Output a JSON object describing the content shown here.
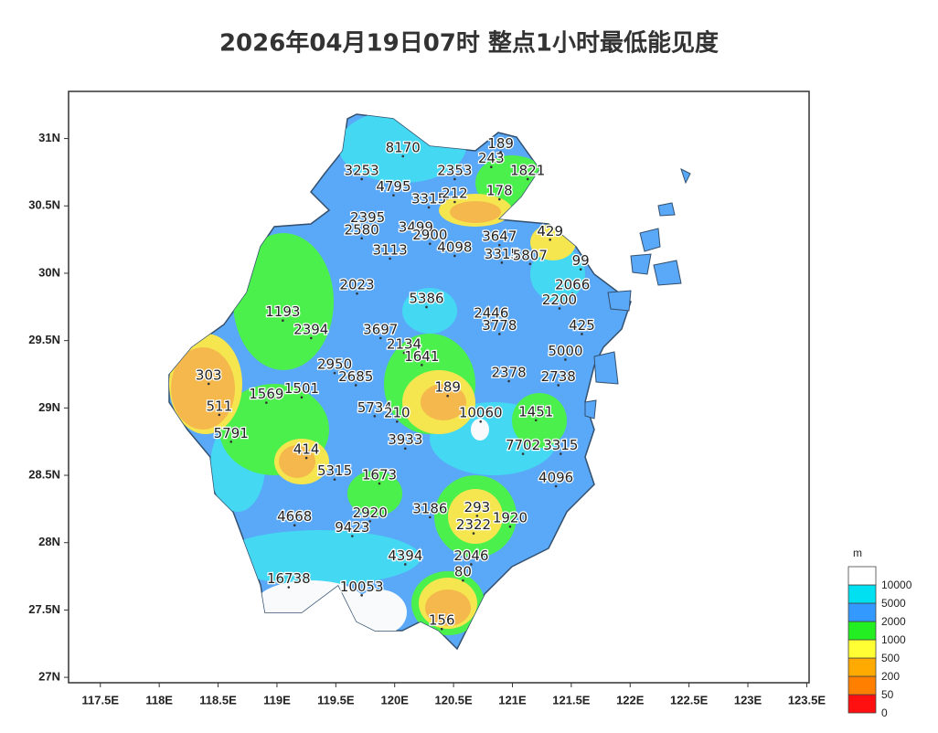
{
  "chart_data": {
    "type": "map",
    "title": "2026年04月19日07时 整点1小时最低能见度",
    "xlim": [
      117.23,
      123.52
    ],
    "ylim": [
      26.96,
      31.35
    ],
    "xticks": [
      {
        "value": 117.5,
        "label": "117.5E"
      },
      {
        "value": 118,
        "label": "118E"
      },
      {
        "value": 118.5,
        "label": "118.5E"
      },
      {
        "value": 119,
        "label": "119E"
      },
      {
        "value": 119.5,
        "label": "119.5E"
      },
      {
        "value": 120,
        "label": "120E"
      },
      {
        "value": 120.5,
        "label": "120.5E"
      },
      {
        "value": 121,
        "label": "121E"
      },
      {
        "value": 121.5,
        "label": "121.5E"
      },
      {
        "value": 122,
        "label": "122E"
      },
      {
        "value": 122.5,
        "label": "122.5E"
      },
      {
        "value": 123,
        "label": "123E"
      },
      {
        "value": 123.5,
        "label": "123.5E"
      }
    ],
    "yticks": [
      {
        "value": 27,
        "label": "27N"
      },
      {
        "value": 27.5,
        "label": "27.5N"
      },
      {
        "value": 28,
        "label": "28N"
      },
      {
        "value": 28.5,
        "label": "28.5N"
      },
      {
        "value": 29,
        "label": "29N"
      },
      {
        "value": 29.5,
        "label": "29.5N"
      },
      {
        "value": 30,
        "label": "30N"
      },
      {
        "value": 30.5,
        "label": "30.5N"
      },
      {
        "value": 31,
        "label": "31N"
      }
    ],
    "stations": {
      "lon": [
        120.07,
        119.72,
        120.51,
        121.13,
        120.82,
        120.9,
        119.99,
        120.29,
        120.51,
        120.89,
        119.77,
        119.72,
        120.18,
        120.3,
        119.96,
        120.51,
        120.89,
        120.91,
        121.15,
        121.32,
        121.58,
        119.68,
        120.27,
        121.51,
        121.4,
        119.05,
        119.29,
        119.88,
        120.82,
        120.89,
        121.59,
        120.08,
        121.45,
        120.23,
        118.42,
        119.49,
        119.67,
        120.97,
        121.39,
        118.91,
        119.21,
        120.45,
        118.51,
        119.83,
        121.2,
        120.02,
        120.73,
        118.61,
        120.09,
        121.09,
        121.41,
        119.25,
        119.49,
        119.87,
        121.37,
        120.3,
        120.7,
        119.79,
        119.15,
        119.64,
        120.67,
        120.98,
        120.09,
        120.65,
        120.58,
        119.1,
        119.72,
        120.4
      ],
      "lat": [
        30.93,
        30.76,
        30.76,
        30.76,
        30.85,
        30.96,
        30.64,
        30.55,
        30.59,
        30.61,
        30.41,
        30.32,
        30.34,
        30.28,
        30.17,
        30.19,
        30.27,
        30.14,
        30.13,
        30.31,
        30.09,
        29.91,
        29.81,
        29.91,
        29.8,
        29.71,
        29.58,
        29.58,
        29.7,
        29.61,
        29.61,
        29.47,
        29.42,
        29.38,
        29.24,
        29.32,
        29.23,
        29.26,
        29.23,
        29.1,
        29.14,
        29.15,
        29.01,
        29.0,
        28.97,
        28.96,
        28.96,
        28.81,
        28.76,
        28.72,
        28.72,
        28.69,
        28.53,
        28.5,
        28.48,
        28.25,
        28.26,
        28.22,
        28.19,
        28.11,
        28.13,
        28.18,
        27.9,
        27.9,
        27.78,
        27.73,
        27.67,
        27.42
      ],
      "values": [
        8170,
        3253,
        2353,
        1821,
        243,
        189,
        4795,
        3315,
        212,
        178,
        2395,
        2580,
        3499,
        2900,
        3113,
        4098,
        3647,
        3315,
        5807,
        429,
        99,
        2023,
        5386,
        2066,
        2200,
        1193,
        2394,
        3697,
        2446,
        3778,
        425,
        2134,
        5000,
        1641,
        303,
        2950,
        2685,
        2378,
        2738,
        1569,
        1501,
        189,
        511,
        5734,
        1451,
        210,
        10060,
        5791,
        3933,
        7702,
        3315,
        414,
        5315,
        1673,
        4096,
        3186,
        293,
        2920,
        4668,
        9423,
        2322,
        1920,
        4394,
        2046,
        80,
        16738,
        10053,
        156
      ]
    },
    "legend": {
      "title": "m",
      "bounds": [
        0,
        50,
        200,
        500,
        1000,
        2000,
        5000,
        10000
      ],
      "colors": [
        "#ff1010",
        "#ff8000",
        "#ffaa00",
        "#ffff33",
        "#22ee22",
        "#3399ff",
        "#00e0f0",
        "#ffffff"
      ]
    }
  }
}
